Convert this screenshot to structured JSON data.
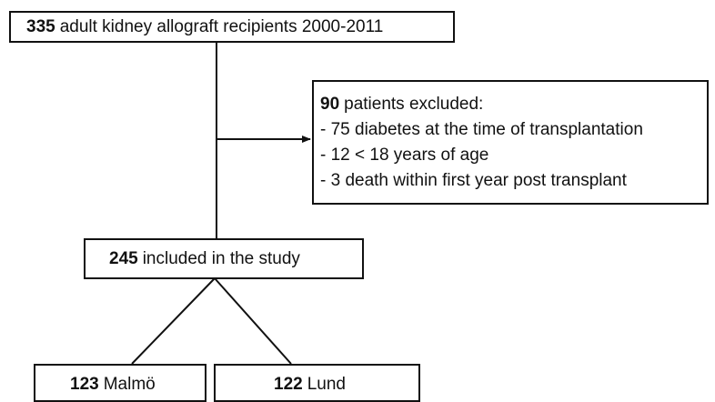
{
  "nodes": [
    {
      "count": 335,
      "label": "adult kidney allograft recipients 2000-2011"
    },
    {
      "count": 90,
      "label": "patients excluded:",
      "items": [
        "- 75 diabetes at the time of transplantation",
        "- 12 < 18 years of age",
        "- 3 death within first year post transplant"
      ]
    },
    {
      "count": 245,
      "label": "included in the study"
    },
    {
      "count": 123,
      "label": "Malmö"
    },
    {
      "count": 122,
      "label": "Lund"
    }
  ]
}
